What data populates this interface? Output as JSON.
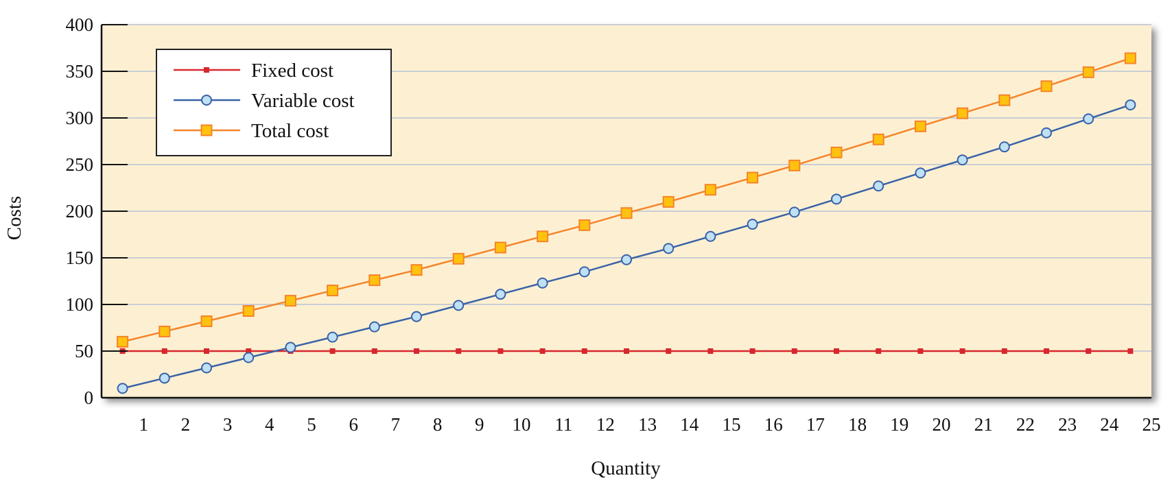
{
  "chart_data": {
    "type": "line",
    "title": "",
    "xlabel": "Quantity",
    "ylabel": "Costs",
    "x_ticks": [
      "1",
      "2",
      "3",
      "4",
      "5",
      "6",
      "7",
      "8",
      "9",
      "10",
      "11",
      "12",
      "13",
      "14",
      "15",
      "16",
      "17",
      "18",
      "19",
      "20",
      "21",
      "22",
      "23",
      "24",
      "25"
    ],
    "y_ticks": [
      "0",
      "50",
      "100",
      "150",
      "200",
      "250",
      "300",
      "350",
      "400"
    ],
    "xlim": [
      0.5,
      25
    ],
    "ylim": [
      0,
      400
    ],
    "x": [
      1,
      2,
      3,
      4,
      5,
      6,
      7,
      8,
      9,
      10,
      11,
      12,
      13,
      14,
      15,
      16,
      17,
      18,
      19,
      20,
      21,
      22,
      23,
      24,
      25
    ],
    "series": [
      {
        "name": "Fixed cost",
        "color": "#d7282f",
        "marker": "small-square",
        "values": [
          50,
          50,
          50,
          50,
          50,
          50,
          50,
          50,
          50,
          50,
          50,
          50,
          50,
          50,
          50,
          50,
          50,
          50,
          50,
          50,
          50,
          50,
          50,
          50,
          50
        ]
      },
      {
        "name": "Variable cost",
        "color": "#3a62a7",
        "marker": "circle",
        "marker_fill": "#bfe0f5",
        "values": [
          10,
          21,
          32,
          43,
          54,
          65,
          76,
          87,
          99,
          111,
          123,
          135,
          148,
          160,
          173,
          186,
          199,
          213,
          227,
          241,
          255,
          269,
          284,
          299,
          314
        ]
      },
      {
        "name": "Total cost",
        "color": "#f5842a",
        "marker": "square",
        "marker_fill": "#ffc20e",
        "values": [
          60,
          71,
          82,
          93,
          104,
          115,
          126,
          137,
          149,
          161,
          173,
          185,
          198,
          210,
          223,
          236,
          249,
          263,
          277,
          291,
          305,
          319,
          334,
          349,
          364
        ]
      }
    ],
    "grid": "horizontal",
    "legend_position": "top-left",
    "plot_background": "#fdf0d2"
  }
}
